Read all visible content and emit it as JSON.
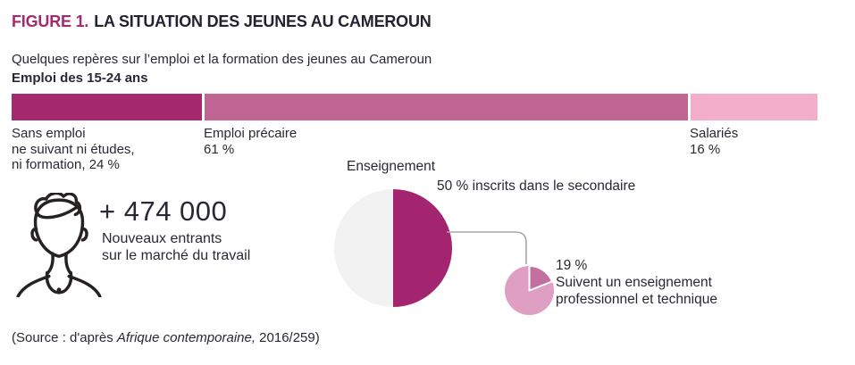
{
  "figure": {
    "label": "FIGURE 1.",
    "title": "LA SITUATION DES JEUNES AU CAMEROUN",
    "subtitle": "Quelques repères sur l’emploi et la formation des jeunes au Cameroun",
    "accent_color": "#a42a70",
    "source_prefix": "(Source : d'après ",
    "source_italic": "Afrique contemporaine,",
    "source_suffix": " 2016/259)"
  },
  "infographic": {
    "stat_value": "+ 474 000",
    "stat_lines": [
      "Nouveaux entrants",
      "sur le marché du travail"
    ]
  },
  "chart_data": [
    {
      "type": "bar",
      "stacked": true,
      "orientation": "horizontal",
      "title": "Emploi des 15-24 ans",
      "unit": "%",
      "segments": [
        {
          "name": "Sans emploi ne suivant ni études, ni formation",
          "value": 24,
          "color": "#a42a70",
          "label_lines": [
            "Sans emploi",
            "ne suivant ni études,",
            "ni formation, 24 %"
          ]
        },
        {
          "name": "Emploi précaire",
          "value": 61,
          "color": "#c06593",
          "label_lines": [
            "Emploi précaire",
            "61 %"
          ]
        },
        {
          "name": "Salariés",
          "value": 16,
          "color": "#f2aeca",
          "label_lines": [
            "Salariés",
            "16 %"
          ]
        }
      ]
    },
    {
      "type": "pie",
      "title": "Enseignement",
      "annotation": "50 % inscrits dans le secondaire",
      "slices": [
        {
          "name": "Inscrits dans le secondaire",
          "value": 50,
          "color": "#a4256f"
        },
        {
          "name": "",
          "value": 50,
          "color": "#f3f2f3"
        }
      ]
    },
    {
      "type": "pie",
      "annotation_lines": [
        "19 %",
        "Suivent un enseignement",
        "professionnel et technique"
      ],
      "slices": [
        {
          "name": "Suivent un enseignement professionnel et technique",
          "value": 19,
          "color": "#c36f9f",
          "separator": true
        },
        {
          "name": "",
          "value": 81,
          "color": "#df9fc2"
        }
      ]
    }
  ]
}
